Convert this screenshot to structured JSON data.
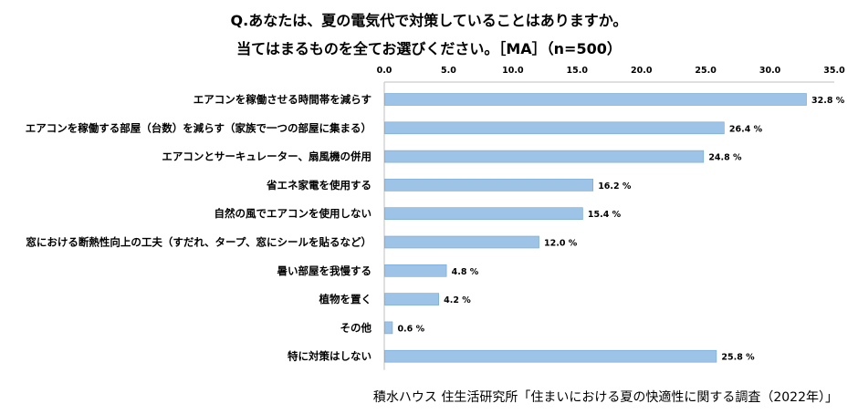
{
  "title": {
    "line1": "Q.あなたは、夏の電気代で対策していることはありますか。",
    "line2": "当てはまるものを全てお選びください。［MA］（n=500）"
  },
  "source": "積水ハウス 住生活研究所「住まいにおける夏の快適性に関する調査（2022年）」",
  "chart_data": {
    "type": "bar",
    "orientation": "horizontal",
    "categories": [
      "エアコンを稼働させる時間帯を減らす",
      "エアコンを稼働する部屋（台数）を減らす（家族で一つの部屋に集まる）",
      "エアコンとサーキュレーター、扇風機の併用",
      "省エネ家電を使用する",
      "自然の風でエアコンを使用しない",
      "窓における断熱性向上の工夫（すだれ、タープ、窓にシールを貼るなど）",
      "暑い部屋を我慢する",
      "植物を置く",
      "その他",
      "特に対策はしない"
    ],
    "values": [
      32.8,
      26.4,
      24.8,
      16.2,
      15.4,
      12.0,
      4.8,
      4.2,
      0.6,
      25.8
    ],
    "value_labels": [
      "32.8 %",
      "26.4 %",
      "24.8 %",
      "16.2 %",
      "15.4 %",
      "12.0 %",
      "4.8 %",
      "4.2 %",
      "0.6 %",
      "25.8 %"
    ],
    "xlim": [
      0,
      35
    ],
    "xticks": [
      "0.0",
      "5.0",
      "10.0",
      "15.0",
      "20.0",
      "25.0",
      "30.0",
      "35.0"
    ],
    "axis_position": "top",
    "grid": false,
    "bar_color": "#9dc3e6",
    "bar_edge_color": "#6fa5d6",
    "xlabel": "",
    "ylabel": ""
  }
}
